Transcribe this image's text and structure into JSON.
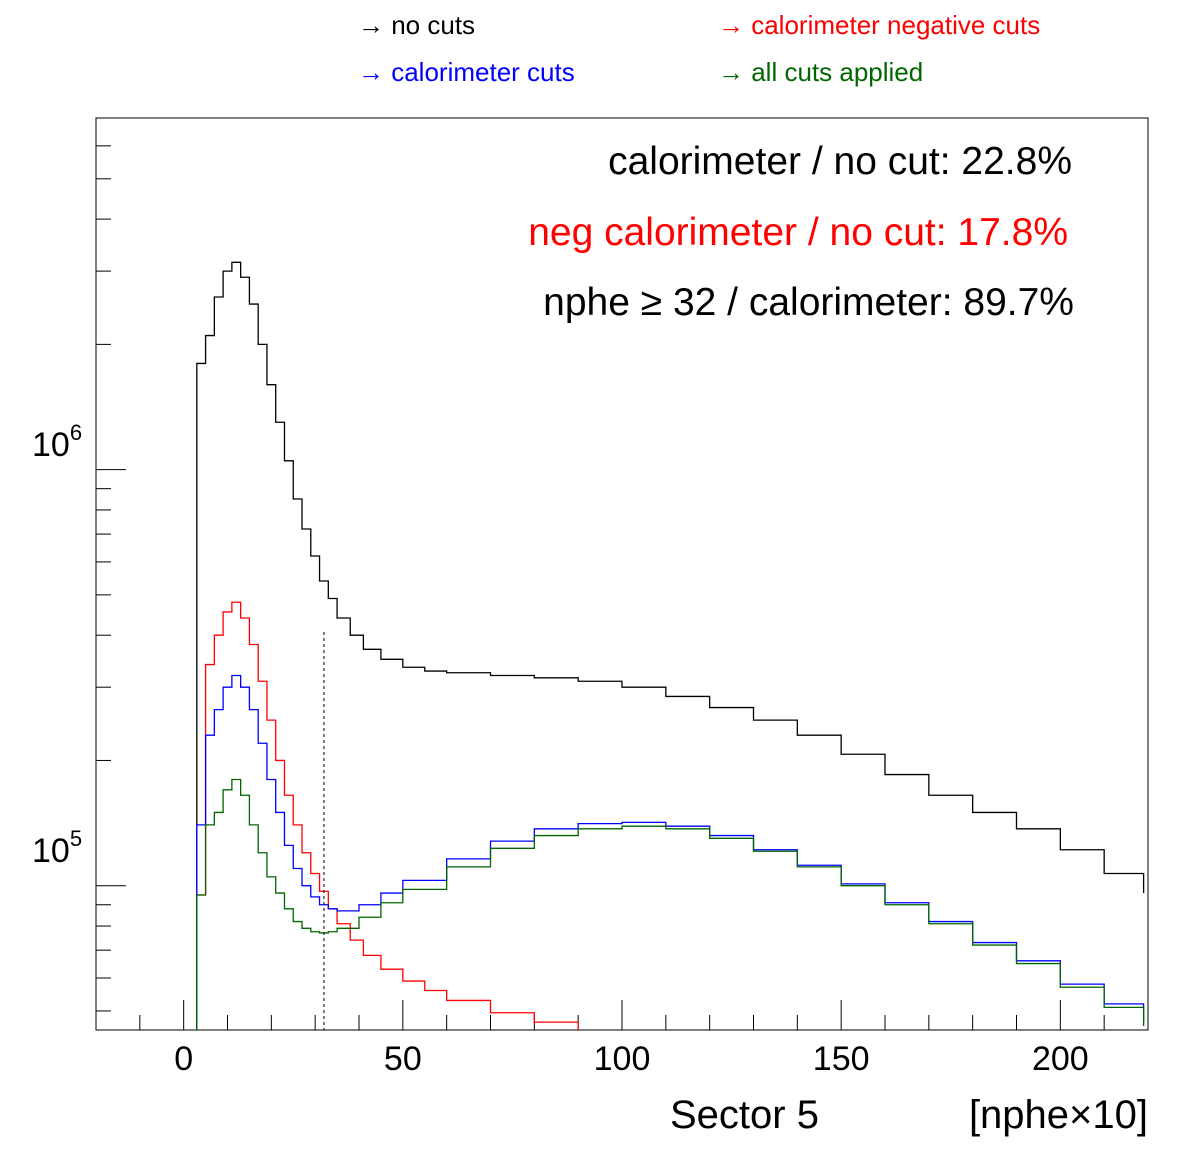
{
  "legend": [
    {
      "text": "→ no cuts",
      "color": "#000000"
    },
    {
      "text": "→ calorimeter negative cuts",
      "color": "#ff0000"
    },
    {
      "text": "→ calorimeter cuts",
      "color": "#0000ff"
    },
    {
      "text": "→ all cuts applied",
      "color": "#006600"
    }
  ],
  "annotations": [
    {
      "text": "calorimeter / no cut:  22.8%",
      "color": "#000000"
    },
    {
      "text": "neg calorimeter / no cut:  17.8%",
      "color": "#ff0000"
    },
    {
      "text": "nphe ≥ 32 / calorimeter:  89.7%",
      "color": "#000000"
    }
  ],
  "x_axis": {
    "title_left": "Sector 5",
    "title_right": "[nphe×10]"
  },
  "y_axis": {
    "exponent_labels": [
      {
        "base": "10",
        "exp": "6"
      },
      {
        "base": "10",
        "exp": "5"
      }
    ]
  },
  "chart_data": {
    "type": "line",
    "style": "step-histogram",
    "xlim": [
      -20,
      220
    ],
    "ylim": [
      45000,
      7000000
    ],
    "yscale": "log",
    "x_ticks": [
      0,
      50,
      100,
      150,
      200
    ],
    "cut_line_x": 32,
    "series": [
      {
        "legend": "no cuts",
        "color": "#000000",
        "points": [
          [
            3,
            1800000
          ],
          [
            5,
            2100000
          ],
          [
            7,
            2600000
          ],
          [
            9,
            3000000
          ],
          [
            11,
            3150000
          ],
          [
            13,
            2900000
          ],
          [
            15,
            2500000
          ],
          [
            17,
            2000000
          ],
          [
            19,
            1600000
          ],
          [
            21,
            1300000
          ],
          [
            23,
            1050000
          ],
          [
            25,
            850000
          ],
          [
            27,
            720000
          ],
          [
            29,
            620000
          ],
          [
            31,
            540000
          ],
          [
            33,
            490000
          ],
          [
            35,
            440000
          ],
          [
            38,
            400000
          ],
          [
            41,
            370000
          ],
          [
            45,
            350000
          ],
          [
            50,
            335000
          ],
          [
            55,
            328000
          ],
          [
            60,
            325000
          ],
          [
            70,
            320000
          ],
          [
            80,
            316000
          ],
          [
            90,
            310000
          ],
          [
            100,
            300000
          ],
          [
            110,
            285000
          ],
          [
            120,
            268000
          ],
          [
            130,
            250000
          ],
          [
            140,
            230000
          ],
          [
            150,
            207000
          ],
          [
            160,
            185000
          ],
          [
            170,
            165000
          ],
          [
            180,
            150000
          ],
          [
            190,
            137000
          ],
          [
            200,
            122000
          ],
          [
            210,
            107000
          ],
          [
            219,
            96000
          ]
        ]
      },
      {
        "legend": "calorimeter negative cuts",
        "color": "#ff0000",
        "points": [
          [
            3,
            95000
          ],
          [
            5,
            340000
          ],
          [
            7,
            400000
          ],
          [
            9,
            455000
          ],
          [
            11,
            480000
          ],
          [
            13,
            440000
          ],
          [
            15,
            380000
          ],
          [
            17,
            310000
          ],
          [
            19,
            250000
          ],
          [
            21,
            200000
          ],
          [
            23,
            165000
          ],
          [
            25,
            140000
          ],
          [
            27,
            120000
          ],
          [
            29,
            107000
          ],
          [
            31,
            97000
          ],
          [
            33,
            88000
          ],
          [
            35,
            81000
          ],
          [
            38,
            74000
          ],
          [
            41,
            68000
          ],
          [
            45,
            63000
          ],
          [
            50,
            59000
          ],
          [
            55,
            56000
          ],
          [
            60,
            53000
          ],
          [
            70,
            49500
          ],
          [
            80,
            47000
          ],
          [
            90,
            45000
          ]
        ]
      },
      {
        "legend": "calorimeter cuts",
        "color": "#0000ff",
        "points": [
          [
            3,
            140000
          ],
          [
            5,
            230000
          ],
          [
            7,
            265000
          ],
          [
            9,
            300000
          ],
          [
            11,
            320000
          ],
          [
            13,
            300000
          ],
          [
            15,
            265000
          ],
          [
            17,
            220000
          ],
          [
            19,
            180000
          ],
          [
            21,
            150000
          ],
          [
            23,
            125000
          ],
          [
            25,
            110000
          ],
          [
            27,
            100000
          ],
          [
            29,
            94000
          ],
          [
            31,
            90000
          ],
          [
            33,
            88000
          ],
          [
            35,
            87000
          ],
          [
            40,
            90000
          ],
          [
            45,
            96000
          ],
          [
            50,
            103000
          ],
          [
            60,
            116000
          ],
          [
            70,
            128000
          ],
          [
            80,
            137000
          ],
          [
            90,
            141000
          ],
          [
            100,
            142000
          ],
          [
            110,
            139000
          ],
          [
            120,
            132000
          ],
          [
            130,
            122000
          ],
          [
            140,
            112000
          ],
          [
            150,
            101000
          ],
          [
            160,
            91000
          ],
          [
            170,
            82000
          ],
          [
            180,
            73000
          ],
          [
            190,
            66000
          ],
          [
            200,
            58000
          ],
          [
            210,
            52000
          ],
          [
            219,
            47000
          ]
        ]
      },
      {
        "legend": "all cuts applied",
        "color": "#006600",
        "points": [
          [
            3,
            95000
          ],
          [
            5,
            140000
          ],
          [
            7,
            150000
          ],
          [
            9,
            170000
          ],
          [
            11,
            180000
          ],
          [
            13,
            165000
          ],
          [
            15,
            140000
          ],
          [
            17,
            120000
          ],
          [
            19,
            105000
          ],
          [
            21,
            96000
          ],
          [
            23,
            88000
          ],
          [
            25,
            82000
          ],
          [
            27,
            79000
          ],
          [
            29,
            77500
          ],
          [
            31,
            77000
          ],
          [
            33,
            77500
          ],
          [
            35,
            79000
          ],
          [
            40,
            84000
          ],
          [
            45,
            91000
          ],
          [
            50,
            98000
          ],
          [
            60,
            111000
          ],
          [
            70,
            123000
          ],
          [
            80,
            132000
          ],
          [
            90,
            137000
          ],
          [
            100,
            139000
          ],
          [
            110,
            137000
          ],
          [
            120,
            130000
          ],
          [
            130,
            121000
          ],
          [
            140,
            111000
          ],
          [
            150,
            100000
          ],
          [
            160,
            90000
          ],
          [
            170,
            81000
          ],
          [
            180,
            72000
          ],
          [
            190,
            65000
          ],
          [
            200,
            57000
          ],
          [
            210,
            51000
          ],
          [
            219,
            46000
          ]
        ]
      }
    ]
  }
}
